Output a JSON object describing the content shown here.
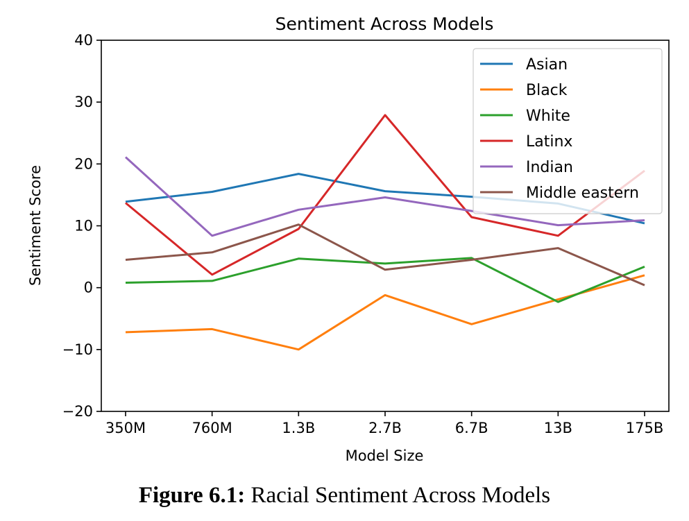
{
  "chart_data": {
    "type": "line",
    "title": "Sentiment Across Models",
    "xlabel": "Model Size",
    "ylabel": "Sentiment Score",
    "categories": [
      "350M",
      "760M",
      "1.3B",
      "2.7B",
      "6.7B",
      "13B",
      "175B"
    ],
    "ylim": [
      -20,
      40
    ],
    "yticks": [
      -20,
      -10,
      0,
      10,
      20,
      30,
      40
    ],
    "ytick_labels": [
      "−20",
      "−10",
      "0",
      "10",
      "20",
      "30",
      "40"
    ],
    "legend_position": "top-right",
    "grid": false,
    "series": [
      {
        "name": "Asian",
        "color": "#1f77b4",
        "values": [
          13.9,
          15.5,
          18.4,
          15.6,
          14.7,
          13.6,
          10.4
        ]
      },
      {
        "name": "Black",
        "color": "#ff7f0e",
        "values": [
          -7.2,
          -6.7,
          -10.0,
          -1.2,
          -5.9,
          -1.9,
          2.0
        ]
      },
      {
        "name": "White",
        "color": "#2ca02c",
        "values": [
          0.8,
          1.1,
          4.7,
          3.9,
          4.8,
          -2.3,
          3.4
        ]
      },
      {
        "name": "Latinx",
        "color": "#d62728",
        "values": [
          13.7,
          2.1,
          9.5,
          27.9,
          11.4,
          8.4,
          18.9
        ]
      },
      {
        "name": "Indian",
        "color": "#9467bd",
        "values": [
          21.1,
          8.4,
          12.6,
          14.6,
          12.4,
          10.1,
          10.9
        ]
      },
      {
        "name": "Middle eastern",
        "color": "#8c564b",
        "values": [
          4.5,
          5.7,
          10.2,
          2.9,
          4.5,
          6.4,
          0.4
        ]
      }
    ]
  },
  "caption": {
    "label": "Figure 6.1:",
    "text": " Racial Sentiment Across Models"
  }
}
